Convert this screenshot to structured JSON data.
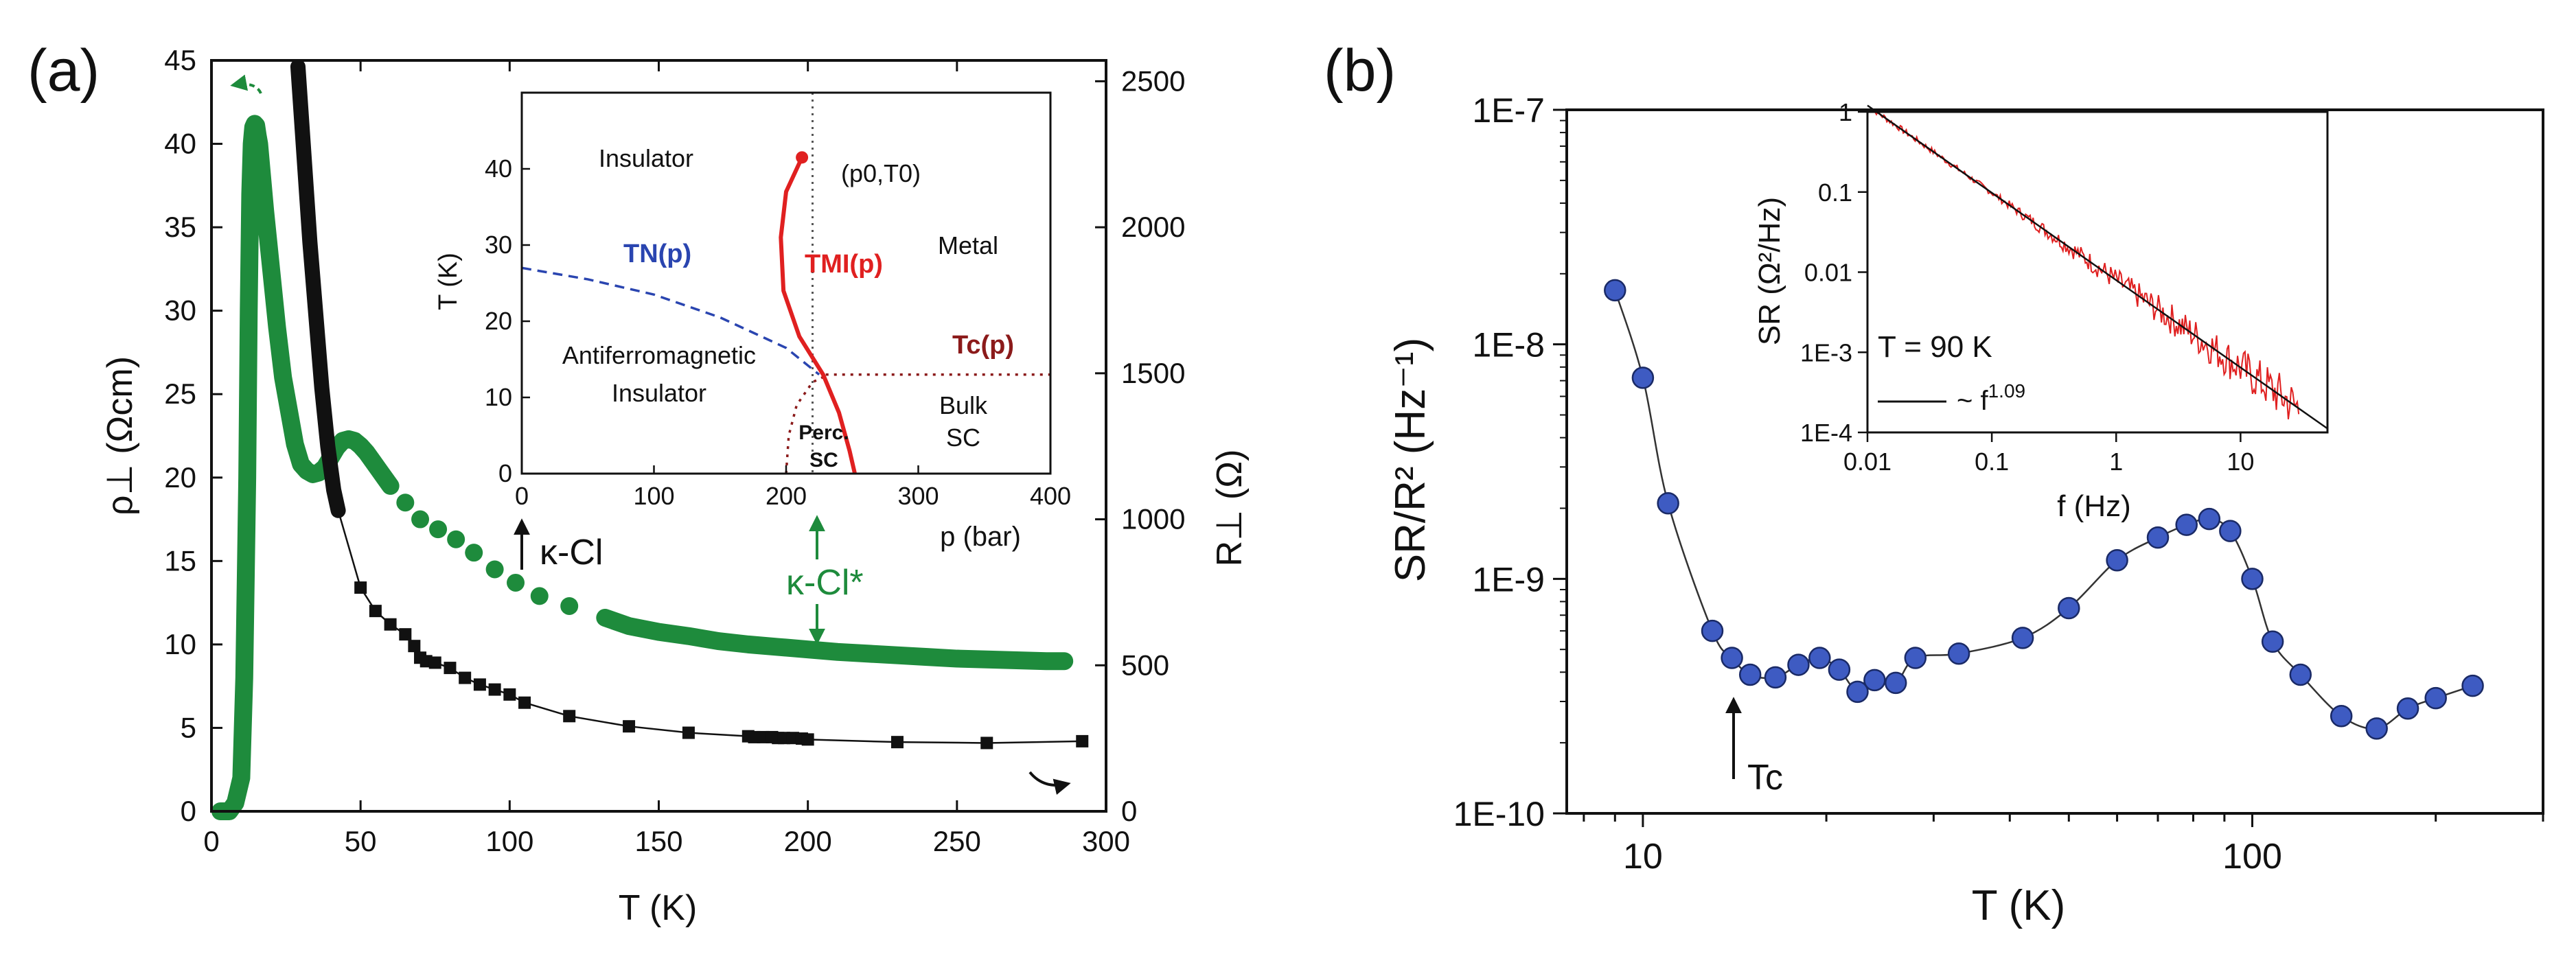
{
  "panels": {
    "a": "(a)",
    "b": "(b)"
  },
  "colors": {
    "green": "#1e8b3c",
    "black": "#111111",
    "red": "#e02020",
    "blue": "#2a45b0",
    "darkred": "#8b1a1a",
    "marker_blue": "#3e5bc2"
  },
  "chart_data": [
    {
      "id": "a-main",
      "type": "scatter",
      "xlabel": "T (K)",
      "ylabel": "ρ⊥ (Ωcm)",
      "ylabel_right": "R⊥ (Ω)",
      "xlim": [
        0,
        300
      ],
      "ylim": [
        0,
        45
      ],
      "ylim_right": [
        0,
        2571.4
      ],
      "xticks": [
        0,
        50,
        100,
        150,
        200,
        250,
        300
      ],
      "yticks": [
        0,
        5,
        10,
        15,
        20,
        25,
        30,
        35,
        40,
        45
      ],
      "yticks_right": [
        0,
        500,
        1000,
        1500,
        2000,
        2500
      ],
      "annotations": [
        "κ-Cl",
        "κ-Cl*"
      ],
      "series": [
        {
          "axis": "left",
          "x": [
            3,
            6,
            8,
            10,
            11,
            12,
            12.5,
            13,
            13.5,
            14,
            14.5,
            15,
            15.5,
            16,
            17,
            18,
            20,
            22,
            24,
            26,
            28,
            30,
            32,
            34,
            36,
            38,
            40,
            42,
            44,
            46,
            48,
            50,
            52,
            54,
            56,
            58,
            60
          ],
          "y": [
            0,
            0,
            0.5,
            2,
            8,
            20,
            30,
            37,
            40,
            41,
            41.2,
            41.1,
            40.5,
            40,
            38,
            36,
            32.5,
            29,
            26,
            24,
            22,
            20.8,
            20.4,
            20.2,
            20.3,
            20.6,
            21.2,
            21.8,
            22.2,
            22.3,
            22.2,
            21.9,
            21.5,
            21.0,
            20.5,
            20.0,
            19.5
          ]
        },
        {
          "axis": "left",
          "x": [
            65,
            70,
            76,
            82,
            88,
            95,
            102,
            110,
            120
          ],
          "y": [
            18.5,
            17.5,
            16.9,
            16.3,
            15.5,
            14.5,
            13.7,
            12.9,
            12.3
          ]
        },
        {
          "axis": "left",
          "x": [
            132,
            140,
            150,
            160,
            170,
            180,
            190,
            200,
            210,
            220,
            230,
            240,
            250,
            260,
            270,
            280,
            286
          ],
          "y": [
            11.6,
            11.1,
            10.75,
            10.5,
            10.2,
            10.0,
            9.85,
            9.7,
            9.55,
            9.45,
            9.35,
            9.25,
            9.15,
            9.1,
            9.05,
            9.0,
            9.0
          ]
        },
        {
          "axis": "right",
          "x": [
            29,
            31,
            33,
            35,
            37,
            39,
            41,
            42.5
          ],
          "y": [
            2550,
            2250,
            1950,
            1700,
            1450,
            1250,
            1100,
            1030
          ]
        },
        {
          "axis": "right",
          "x": [
            50,
            55,
            60,
            65,
            68,
            70,
            72,
            75,
            80,
            85,
            90,
            95,
            100,
            105,
            120,
            140,
            160,
            180,
            182,
            185,
            188,
            190,
            192,
            195,
            198,
            200,
            230,
            260,
            292
          ],
          "y": [
            766,
            686,
            640,
            606,
            566,
            526,
            514,
            509,
            491,
            457,
            434,
            417,
            400,
            372,
            326,
            291,
            269,
            257,
            254,
            254,
            254,
            251,
            251,
            251,
            249,
            246,
            237,
            234,
            240
          ]
        }
      ]
    },
    {
      "id": "a-inset",
      "type": "line",
      "xlabel": "p (bar)",
      "ylabel": "T (K)",
      "xlim": [
        0,
        400
      ],
      "ylim": [
        0,
        50
      ],
      "xticks": [
        0,
        100,
        200,
        300,
        400
      ],
      "yticks": [
        0,
        10,
        20,
        30,
        40
      ],
      "labels": [
        "Insulator",
        "Metal",
        "Antiferromagnetic",
        "Insulator",
        "Bulk",
        "SC",
        "Perc.",
        "SC",
        "(p0,T0)",
        "TN(p)",
        "TMI(p)",
        "Tc(p)"
      ],
      "series": [
        {
          "label": "T_N(p)",
          "x": [
            0,
            50,
            100,
            150,
            200,
            225
          ],
          "y": [
            27,
            25.5,
            23.5,
            20.5,
            16.5,
            13
          ]
        },
        {
          "label": "T_MI(p)",
          "x": [
            212,
            200,
            196,
            198,
            210,
            228,
            240,
            248,
            252
          ],
          "y": [
            41.5,
            37,
            31,
            24,
            18,
            13,
            8,
            3,
            0
          ]
        },
        {
          "label": "T_c(p)",
          "x": [
            230,
            260,
            300,
            350,
            400
          ],
          "y": [
            13,
            13,
            13,
            13,
            13
          ]
        },
        {
          "label": "perc-sc",
          "x": [
            200,
            202,
            208,
            220,
            232
          ],
          "y": [
            0,
            5,
            9,
            12,
            13
          ]
        }
      ],
      "vline": 220,
      "critical_point": [
        212,
        41.5
      ]
    },
    {
      "id": "b-main",
      "type": "scatter",
      "xlabel": "T (K)",
      "ylabel": "SR/R² (Hz⁻¹)",
      "xscale": "log",
      "yscale": "log",
      "xlim": [
        7.5,
        300
      ],
      "ylim": [
        1e-10,
        1e-07
      ],
      "xticks": [
        "10",
        "100"
      ],
      "yticks": [
        "1E-10",
        "1E-9",
        "1E-8",
        "1E-7"
      ],
      "annotation": "Tc",
      "x": [
        9,
        10,
        11,
        13,
        14,
        15,
        16.5,
        18,
        19.5,
        21,
        22.5,
        24,
        26,
        28,
        33,
        42,
        50,
        60,
        70,
        78,
        85,
        92,
        100,
        108,
        120,
        140,
        160,
        180,
        200,
        230
      ],
      "y": [
        1.7e-08,
        7.2e-09,
        2.1e-09,
        6e-10,
        4.6e-10,
        3.9e-10,
        3.8e-10,
        4.3e-10,
        4.6e-10,
        4.1e-10,
        3.3e-10,
        3.7e-10,
        3.6e-10,
        4.6e-10,
        4.8e-10,
        5.6e-10,
        7.5e-10,
        1.2e-09,
        1.5e-09,
        1.7e-09,
        1.8e-09,
        1.6e-09,
        1e-09,
        5.4e-10,
        3.9e-10,
        2.6e-10,
        2.3e-10,
        2.8e-10,
        3.1e-10,
        3.5e-10
      ]
    },
    {
      "id": "b-inset",
      "type": "line",
      "xlabel": "f (Hz)",
      "ylabel": "SR (Ω²/Hz)",
      "xscale": "log",
      "yscale": "log",
      "xlim": [
        0.01,
        50
      ],
      "ylim": [
        0.0001,
        1
      ],
      "xticks": [
        "0.01",
        "0.1",
        "1",
        "10"
      ],
      "yticks": [
        "1E-4",
        "1E-3",
        "0.01",
        "0.1",
        "1"
      ],
      "label": "T = 90 K",
      "legend": "~ f",
      "legend_exp": "1.09",
      "exponent": 1.09
    }
  ]
}
